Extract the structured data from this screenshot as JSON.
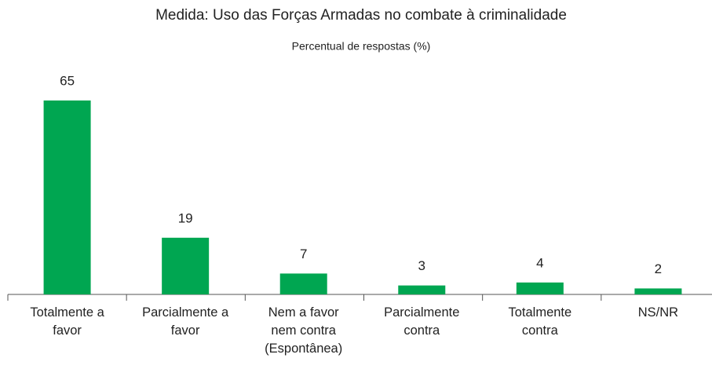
{
  "chart_data": {
    "type": "bar",
    "title": "Medida: Uso das Forças Armadas no combate à criminalidade",
    "subtitle": "Percentual de respostas (%)",
    "categories": [
      "Totalmente a favor",
      "Parcialmente a favor",
      "Nem a favor nem contra (Espontânea)",
      "Parcialmente contra",
      "Totalmente contra",
      "NS/NR"
    ],
    "values": [
      65,
      19,
      7,
      3,
      4,
      2
    ],
    "color": "#00a651",
    "ylim": [
      0,
      70
    ]
  }
}
